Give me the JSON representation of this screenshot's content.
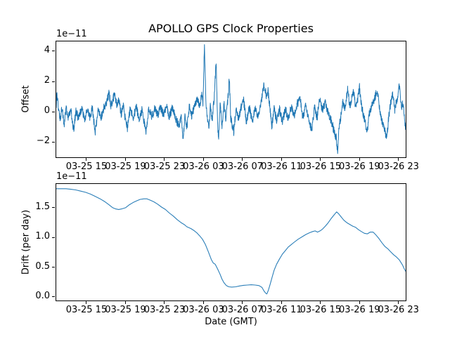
{
  "figure": {
    "background": "#ffffff",
    "text_color": "#000000",
    "accent_line_color": "#1f77b4"
  },
  "chart_data": [
    {
      "type": "line",
      "title": "APOLLO GPS Clock Properties",
      "ylabel": "Offset",
      "scale_label": "1e−11",
      "line_color": "#1f77b4",
      "grid": false,
      "legend": "none",
      "x_unit": "hours since 03-25 00:00 GMT",
      "xlim": [
        11.9,
        47.74
      ],
      "ylim": [
        -3.02,
        4.65
      ],
      "x_tick_hours": [
        15,
        19,
        23,
        27,
        31,
        35,
        39,
        43,
        47
      ],
      "x_tick_labels": [
        "03-25 15",
        "03-25 19",
        "03-25 23",
        "03-26 03",
        "03-26 07",
        "03-26 11",
        "03-26 15",
        "03-26 19",
        "03-26 23"
      ],
      "y_tick_values": [
        -2,
        0,
        2,
        4
      ],
      "y_tick_labels": [
        "−2",
        "0",
        "2",
        "4"
      ],
      "series": [
        {
          "name": "offset",
          "description": "noisy clock offset around 0 with spikes to +4.45 (03-26 03), +3.3 (03-26 04), +2.2 (03-26 05:40), dips to −2.0 and −2.62 (03-26 16:45)",
          "anchors": [
            [
              11.9,
              0.5
            ],
            [
              11.95,
              1.25
            ],
            [
              12.1,
              0.35
            ],
            [
              12.3,
              -0.45
            ],
            [
              12.5,
              0.3
            ],
            [
              12.7,
              -0.85
            ],
            [
              12.9,
              0.25
            ],
            [
              13.1,
              -0.35
            ],
            [
              13.4,
              0.15
            ],
            [
              13.7,
              -1.3
            ],
            [
              13.9,
              0.05
            ],
            [
              14.2,
              -0.5
            ],
            [
              14.5,
              0.25
            ],
            [
              14.8,
              -0.6
            ],
            [
              15.1,
              0.15
            ],
            [
              15.4,
              -0.45
            ],
            [
              15.6,
              0.3
            ],
            [
              15.9,
              -1.35
            ],
            [
              16.2,
              0.15
            ],
            [
              16.5,
              -0.4
            ],
            [
              16.8,
              0.3
            ],
            [
              17.1,
              0.7
            ],
            [
              17.3,
              1.25
            ],
            [
              17.5,
              0.4
            ],
            [
              17.7,
              0.8
            ],
            [
              17.9,
              1.2
            ],
            [
              18.1,
              0.45
            ],
            [
              18.3,
              0.9
            ],
            [
              18.55,
              -0.15
            ],
            [
              18.8,
              0.35
            ],
            [
              19.0,
              -0.6
            ],
            [
              19.2,
              -1.1
            ],
            [
              19.5,
              0.25
            ],
            [
              19.8,
              -0.45
            ],
            [
              20.1,
              0.3
            ],
            [
              20.4,
              -0.5
            ],
            [
              20.7,
              0.15
            ],
            [
              21.1,
              -1.35
            ],
            [
              21.4,
              0.25
            ],
            [
              21.7,
              -0.35
            ],
            [
              22.0,
              0.25
            ],
            [
              22.3,
              -0.25
            ],
            [
              22.6,
              0.3
            ],
            [
              22.9,
              -0.2
            ],
            [
              23.2,
              0.3
            ],
            [
              23.5,
              -0.3
            ],
            [
              23.8,
              0.25
            ],
            [
              24.1,
              -0.35
            ],
            [
              24.5,
              -1.0
            ],
            [
              24.7,
              -0.2
            ],
            [
              24.9,
              -1.9
            ],
            [
              25.1,
              -0.35
            ],
            [
              25.3,
              -1.0
            ],
            [
              25.55,
              0.3
            ],
            [
              25.8,
              -0.35
            ],
            [
              26.1,
              0.5
            ],
            [
              26.4,
              0.9
            ],
            [
              26.6,
              0.2
            ],
            [
              26.8,
              1.2
            ],
            [
              26.95,
              0.5
            ],
            [
              27.1,
              4.45
            ],
            [
              27.25,
              0.6
            ],
            [
              27.4,
              -0.35
            ],
            [
              27.55,
              -1.2
            ],
            [
              27.7,
              0.3
            ],
            [
              27.9,
              -0.55
            ],
            [
              28.1,
              1.0
            ],
            [
              28.3,
              3.3
            ],
            [
              28.45,
              -0.8
            ],
            [
              28.55,
              -2.0
            ],
            [
              28.7,
              0.5
            ],
            [
              28.9,
              -0.9
            ],
            [
              29.1,
              0.6
            ],
            [
              29.3,
              -0.5
            ],
            [
              29.5,
              0.8
            ],
            [
              29.65,
              2.2
            ],
            [
              29.8,
              -0.45
            ],
            [
              30.1,
              -1.35
            ],
            [
              30.35,
              0.3
            ],
            [
              30.6,
              -0.5
            ],
            [
              30.9,
              0.4
            ],
            [
              31.1,
              0.8
            ],
            [
              31.4,
              -0.65
            ],
            [
              31.7,
              0.3
            ],
            [
              32.0,
              -0.7
            ],
            [
              32.3,
              0.25
            ],
            [
              32.6,
              -0.35
            ],
            [
              32.9,
              0.5
            ],
            [
              33.2,
              1.75
            ],
            [
              33.45,
              1.1
            ],
            [
              33.6,
              1.45
            ],
            [
              33.8,
              0.4
            ],
            [
              34.0,
              -1.0
            ],
            [
              34.25,
              0.2
            ],
            [
              34.5,
              -0.6
            ],
            [
              34.8,
              0.15
            ],
            [
              35.1,
              -0.7
            ],
            [
              35.4,
              0.2
            ],
            [
              35.7,
              -0.45
            ],
            [
              36.0,
              0.3
            ],
            [
              36.3,
              -0.35
            ],
            [
              36.6,
              0.5
            ],
            [
              36.9,
              0.9
            ],
            [
              37.2,
              -0.45
            ],
            [
              37.5,
              0.4
            ],
            [
              37.8,
              -0.6
            ],
            [
              38.1,
              -1.2
            ],
            [
              38.4,
              0.3
            ],
            [
              38.65,
              -0.45
            ],
            [
              38.9,
              0.95
            ],
            [
              39.2,
              0.1
            ],
            [
              39.5,
              0.6
            ],
            [
              39.8,
              -0.1
            ],
            [
              40.1,
              -0.6
            ],
            [
              40.4,
              -1.3
            ],
            [
              40.6,
              -1.7
            ],
            [
              40.75,
              -2.62
            ],
            [
              40.9,
              -1.0
            ],
            [
              41.1,
              -0.3
            ],
            [
              41.3,
              0.6
            ],
            [
              41.5,
              0.2
            ],
            [
              41.8,
              1.65
            ],
            [
              42.0,
              0.3
            ],
            [
              42.2,
              0.9
            ],
            [
              42.4,
              1.4
            ],
            [
              42.6,
              0.2
            ],
            [
              42.8,
              0.8
            ],
            [
              43.0,
              1.6
            ],
            [
              43.2,
              0.4
            ],
            [
              43.5,
              -0.5
            ],
            [
              43.8,
              -1.3
            ],
            [
              44.0,
              -0.2
            ],
            [
              44.3,
              0.5
            ],
            [
              44.55,
              0.9
            ],
            [
              44.8,
              1.35
            ],
            [
              45.05,
              0.3
            ],
            [
              45.3,
              -0.6
            ],
            [
              45.55,
              -1.1
            ],
            [
              45.8,
              -1.75
            ],
            [
              46.0,
              -0.3
            ],
            [
              46.2,
              0.6
            ],
            [
              46.4,
              1.2
            ],
            [
              46.6,
              0.1
            ],
            [
              46.8,
              0.7
            ],
            [
              47.1,
              1.7
            ],
            [
              47.3,
              0.3
            ],
            [
              47.5,
              0.6
            ],
            [
              47.7,
              -1.1
            ]
          ],
          "noise": {
            "seed": 123456789,
            "amplitude": 0.28,
            "dt": 0.02
          }
        }
      ]
    },
    {
      "type": "line",
      "ylabel": "Drift (per day)",
      "xlabel": "Date (GMT)",
      "scale_label": "1e−11",
      "line_color": "#1f77b4",
      "grid": false,
      "legend": "none",
      "x_unit": "hours since 03-25 00:00 GMT",
      "xlim": [
        11.9,
        47.74
      ],
      "ylim": [
        -0.06,
        1.9
      ],
      "x_tick_hours": [
        15,
        19,
        23,
        27,
        31,
        35,
        39,
        43,
        47
      ],
      "x_tick_labels": [
        "03-25 15",
        "03-25 19",
        "03-25 23",
        "03-26 03",
        "03-26 07",
        "03-26 11",
        "03-26 15",
        "03-26 19",
        "03-26 23"
      ],
      "y_tick_values": [
        0.0,
        0.5,
        1.0,
        1.5
      ],
      "y_tick_labels": [
        "0.0",
        "0.5",
        "1.0",
        "1.5"
      ],
      "points": [
        [
          11.9,
          1.82
        ],
        [
          12.4,
          1.82
        ],
        [
          12.9,
          1.82
        ],
        [
          13.4,
          1.81
        ],
        [
          13.9,
          1.8
        ],
        [
          14.4,
          1.78
        ],
        [
          14.9,
          1.76
        ],
        [
          15.4,
          1.73
        ],
        [
          15.9,
          1.69
        ],
        [
          16.4,
          1.65
        ],
        [
          16.9,
          1.6
        ],
        [
          17.3,
          1.55
        ],
        [
          17.7,
          1.5
        ],
        [
          18.0,
          1.48
        ],
        [
          18.3,
          1.47
        ],
        [
          18.6,
          1.48
        ],
        [
          19.0,
          1.5
        ],
        [
          19.4,
          1.55
        ],
        [
          19.8,
          1.59
        ],
        [
          20.2,
          1.62
        ],
        [
          20.5,
          1.64
        ],
        [
          20.9,
          1.65
        ],
        [
          21.2,
          1.65
        ],
        [
          21.5,
          1.63
        ],
        [
          21.9,
          1.6
        ],
        [
          22.3,
          1.56
        ],
        [
          22.7,
          1.51
        ],
        [
          23.1,
          1.47
        ],
        [
          23.5,
          1.41
        ],
        [
          23.9,
          1.36
        ],
        [
          24.3,
          1.3
        ],
        [
          24.7,
          1.25
        ],
        [
          25.0,
          1.22
        ],
        [
          25.3,
          1.18
        ],
        [
          25.7,
          1.15
        ],
        [
          26.0,
          1.12
        ],
        [
          26.3,
          1.08
        ],
        [
          26.6,
          1.03
        ],
        [
          26.9,
          0.97
        ],
        [
          27.2,
          0.88
        ],
        [
          27.5,
          0.76
        ],
        [
          27.8,
          0.63
        ],
        [
          28.0,
          0.57
        ],
        [
          28.2,
          0.55
        ],
        [
          28.45,
          0.47
        ],
        [
          28.7,
          0.38
        ],
        [
          28.9,
          0.3
        ],
        [
          29.1,
          0.24
        ],
        [
          29.35,
          0.19
        ],
        [
          29.6,
          0.17
        ],
        [
          29.9,
          0.165
        ],
        [
          30.3,
          0.17
        ],
        [
          30.7,
          0.185
        ],
        [
          31.1,
          0.195
        ],
        [
          31.5,
          0.2
        ],
        [
          31.9,
          0.205
        ],
        [
          32.3,
          0.2
        ],
        [
          32.7,
          0.19
        ],
        [
          33.0,
          0.16
        ],
        [
          33.2,
          0.1
        ],
        [
          33.4,
          0.06
        ],
        [
          33.5,
          0.05
        ],
        [
          33.65,
          0.11
        ],
        [
          33.85,
          0.22
        ],
        [
          34.05,
          0.34
        ],
        [
          34.25,
          0.45
        ],
        [
          34.5,
          0.55
        ],
        [
          34.8,
          0.64
        ],
        [
          35.1,
          0.72
        ],
        [
          35.4,
          0.78
        ],
        [
          35.7,
          0.84
        ],
        [
          36.0,
          0.88
        ],
        [
          36.3,
          0.92
        ],
        [
          36.7,
          0.97
        ],
        [
          37.1,
          1.01
        ],
        [
          37.5,
          1.05
        ],
        [
          37.9,
          1.08
        ],
        [
          38.2,
          1.1
        ],
        [
          38.45,
          1.11
        ],
        [
          38.7,
          1.09
        ],
        [
          38.95,
          1.11
        ],
        [
          39.2,
          1.14
        ],
        [
          39.5,
          1.19
        ],
        [
          39.8,
          1.25
        ],
        [
          40.1,
          1.32
        ],
        [
          40.4,
          1.38
        ],
        [
          40.65,
          1.43
        ],
        [
          40.85,
          1.4
        ],
        [
          41.1,
          1.35
        ],
        [
          41.4,
          1.29
        ],
        [
          41.7,
          1.25
        ],
        [
          42.0,
          1.22
        ],
        [
          42.3,
          1.19
        ],
        [
          42.6,
          1.17
        ],
        [
          42.9,
          1.13
        ],
        [
          43.2,
          1.1
        ],
        [
          43.5,
          1.07
        ],
        [
          43.8,
          1.06
        ],
        [
          44.1,
          1.09
        ],
        [
          44.4,
          1.09
        ],
        [
          44.7,
          1.04
        ],
        [
          45.0,
          0.98
        ],
        [
          45.3,
          0.91
        ],
        [
          45.6,
          0.85
        ],
        [
          45.9,
          0.81
        ],
        [
          46.2,
          0.76
        ],
        [
          46.5,
          0.71
        ],
        [
          46.8,
          0.67
        ],
        [
          47.1,
          0.62
        ],
        [
          47.4,
          0.54
        ],
        [
          47.6,
          0.47
        ],
        [
          47.74,
          0.43
        ]
      ]
    }
  ]
}
